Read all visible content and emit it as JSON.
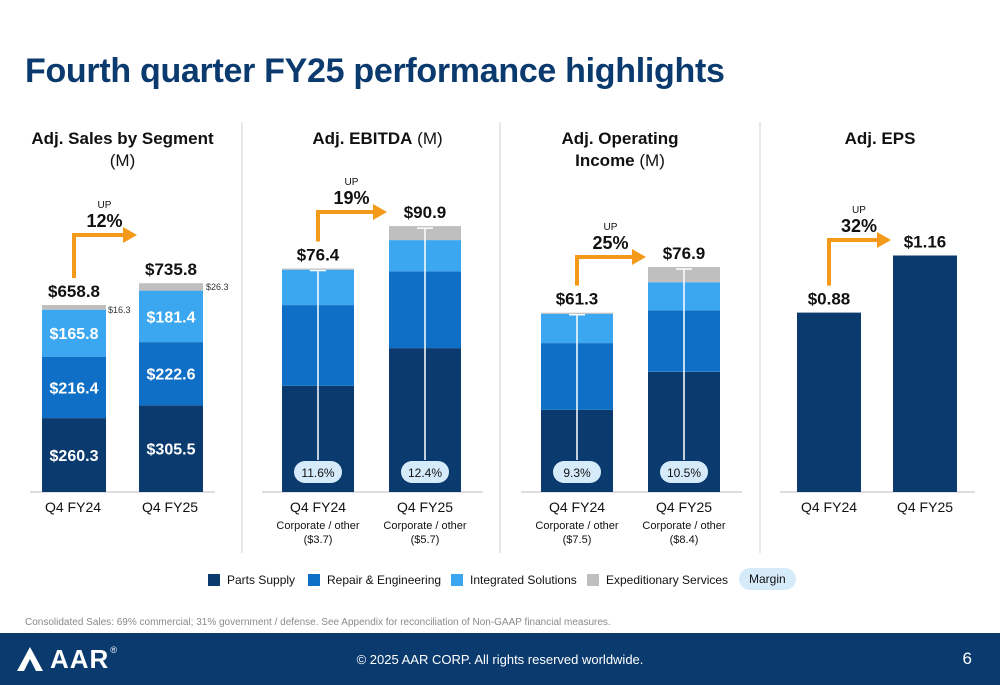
{
  "title": "Fourth quarter FY25 performance highlights",
  "colors": {
    "parts_supply": "#0a3a6e",
    "repair_engineering": "#0f6fc6",
    "integrated_solutions": "#3aa7f0",
    "expeditionary_services": "#bfbfbf",
    "arrow": "#f39a1b",
    "margin_pill": "#d6ebfa"
  },
  "legend": [
    {
      "label": "Parts Supply",
      "color": "#0a3a6e"
    },
    {
      "label": "Repair & Engineering",
      "color": "#0f6fc6"
    },
    {
      "label": "Integrated Solutions",
      "color": "#3aa7f0"
    },
    {
      "label": "Expeditionary Services",
      "color": "#bfbfbf"
    }
  ],
  "margin_label": "Margin",
  "footnote": "Consolidated Sales: 69% commercial; 31% government / defense. See Appendix for reconciliation of Non-GAAP financial measures.",
  "footer": {
    "logo_text": "AAR",
    "registered": "®",
    "copyright": "© 2025 AAR CORP. All rights reserved worldwide.",
    "page_number": "6"
  },
  "chart_data": [
    {
      "type": "bar",
      "stacked": true,
      "title_bold": "Adj. Sales by Segment",
      "title_unit": "(M)",
      "categories": [
        "Q4 FY24",
        "Q4 FY25"
      ],
      "series": [
        {
          "name": "Parts Supply",
          "values": [
            260.3,
            305.5
          ],
          "labels": [
            "$260.3",
            "$305.5"
          ]
        },
        {
          "name": "Repair & Engineering",
          "values": [
            216.4,
            222.6
          ],
          "labels": [
            "$216.4",
            "$222.6"
          ]
        },
        {
          "name": "Integrated Solutions",
          "values": [
            165.8,
            181.4
          ],
          "labels": [
            "$165.8",
            "$181.4"
          ]
        },
        {
          "name": "Expeditionary Services",
          "values": [
            16.3,
            26.3
          ],
          "labels": [
            "$16.3",
            "$26.3"
          ]
        }
      ],
      "totals": [
        658.8,
        735.8
      ],
      "total_labels": [
        "$658.8",
        "$735.8"
      ],
      "growth_up": "UP",
      "growth_pct": "12%",
      "sublabels": [
        "",
        ""
      ],
      "margins": []
    },
    {
      "type": "bar",
      "stacked": true,
      "title_bold": "Adj. EBITDA",
      "title_unit": "(M)",
      "categories": [
        "Q4 FY24",
        "Q4 FY25"
      ],
      "series": [
        {
          "name": "Parts Supply",
          "values": [
            36.3,
            49.2
          ]
        },
        {
          "name": "Repair & Engineering",
          "values": [
            27.6,
            26.2
          ]
        },
        {
          "name": "Integrated Solutions",
          "values": [
            12.1,
            10.7
          ]
        },
        {
          "name": "Expeditionary Services",
          "values": [
            0.4,
            4.8
          ]
        }
      ],
      "totals": [
        76.4,
        90.9
      ],
      "total_labels": [
        "$76.4",
        "$90.9"
      ],
      "growth_up": "UP",
      "growth_pct": "19%",
      "sublabels": [
        "Corporate / other ($3.7)",
        "Corporate / other ($5.7)"
      ],
      "margins": [
        "11.6%",
        "12.4%"
      ]
    },
    {
      "type": "bar",
      "stacked": true,
      "title_bold": "Adj. Operating Income",
      "title_unit": "(M)",
      "categories": [
        "Q4 FY24",
        "Q4 FY25"
      ],
      "series": [
        {
          "name": "Parts Supply",
          "values": [
            28.1,
            41.1
          ]
        },
        {
          "name": "Repair & Engineering",
          "values": [
            22.8,
            21.0
          ]
        },
        {
          "name": "Integrated Solutions",
          "values": [
            10.0,
            9.6
          ]
        },
        {
          "name": "Expeditionary Services",
          "values": [
            0.4,
            5.2
          ]
        }
      ],
      "totals": [
        61.3,
        76.9
      ],
      "total_labels": [
        "$61.3",
        "$76.9"
      ],
      "growth_up": "UP",
      "growth_pct": "25%",
      "sublabels": [
        "Corporate / other ($7.5)",
        "Corporate / other ($8.4)"
      ],
      "margins": [
        "9.3%",
        "10.5%"
      ]
    },
    {
      "type": "bar",
      "stacked": false,
      "title_bold": "Adj. EPS",
      "title_unit": "",
      "categories": [
        "Q4 FY24",
        "Q4 FY25"
      ],
      "series": [
        {
          "name": "Parts Supply",
          "values": [
            0.88,
            1.16
          ]
        }
      ],
      "totals": [
        0.88,
        1.16
      ],
      "total_labels": [
        "$0.88",
        "$1.16"
      ],
      "growth_up": "UP",
      "growth_pct": "32%",
      "sublabels": [
        "",
        ""
      ],
      "margins": []
    }
  ]
}
